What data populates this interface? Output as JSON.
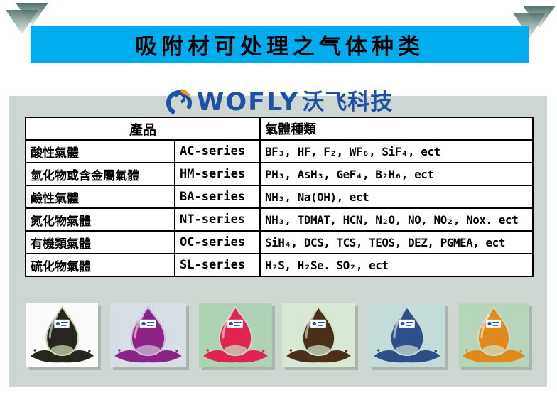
{
  "title": {
    "text": "吸附材可处理之气体种类"
  },
  "logo": {
    "brand": "WOFLY",
    "brand_cn": "沃飞科技",
    "icon": "wofly-swirl-icon",
    "brand_color": "#1d52a8",
    "accent_color": "#f6921e"
  },
  "table": {
    "header": {
      "product": "產品",
      "gas_types": "氣體種類"
    },
    "rows": [
      {
        "category": "酸性氣體",
        "series": "AC-series",
        "gases": "BF₃, HF, F₂, WF₆, SiF₄, ect"
      },
      {
        "category": "氫化物或含金屬氣體",
        "series": "HM-series",
        "gases": "PH₃, AsH₃, GeF₄, B₂H₆, ect"
      },
      {
        "category": "鹼性氣體",
        "series": "BA-series",
        "gases": "NH₃, Na(OH), ect"
      },
      {
        "category": "氮化物氣體",
        "series": "NT-series",
        "gases": "NH₃, TDMAT, HCN, N₂O, NO, NO₂, Nox. ect"
      },
      {
        "category": "有機類氣體",
        "series": "OC-series",
        "gases": "SiH₄, DCS, TCS, TEOS, DEZ, PGMEA, ect"
      },
      {
        "category": "硫化物氣體",
        "series": "SL-series",
        "gases": "H₂S, H₂Se. SO₂, ect"
      }
    ]
  },
  "photos": [
    {
      "name": "photo-black-pellets",
      "bg": "#fbfbfb",
      "pellet": "#26261f",
      "glass": "#c4d6ae"
    },
    {
      "name": "photo-purple-pellets",
      "bg": "#d7dee6",
      "pellet": "#8e2387",
      "glass": "#cbb9d6"
    },
    {
      "name": "photo-red-pellets",
      "bg": "#aed2b4",
      "pellet": "#e02450",
      "glass": "#c9d8c2"
    },
    {
      "name": "photo-brown-pellets",
      "bg": "#d9e8d5",
      "pellet": "#4a3018",
      "glass": "#cfe0c8"
    },
    {
      "name": "photo-blue-pellets",
      "bg": "#c4dcd8",
      "pellet": "#2b4f86",
      "glass": "#c6d8d2"
    },
    {
      "name": "photo-orange-pellets",
      "bg": "#b6d6bc",
      "pellet": "#e2891c",
      "glass": "#cdddc4"
    }
  ],
  "colors": {
    "banner": "#00aeef",
    "panel": "#cdd6d0",
    "table_border": "#000000",
    "triangle_dark": "#52706b",
    "triangle_light": "#dfe9e5"
  }
}
